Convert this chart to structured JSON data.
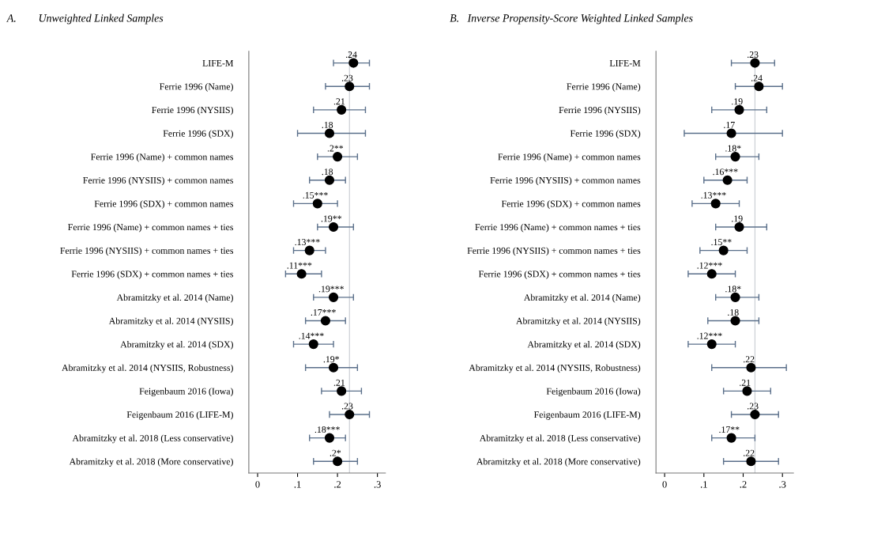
{
  "chart_data": [
    {
      "type": "scatter",
      "orientation": "horizontal",
      "title": "A.        Unweighted Linked Samples",
      "categories": [
        "LIFE-M",
        "Ferrie 1996 (Name)",
        "Ferrie 1996 (NYSIIS)",
        "Ferrie 1996 (SDX)",
        "Ferrie 1996 (Name) + common names",
        "Ferrie 1996 (NYSIIS) + common names",
        "Ferrie 1996 (SDX) + common names",
        "Ferrie 1996 (Name) + common names + ties",
        "Ferrie 1996 (NYSIIS) + common names + ties",
        "Ferrie 1996 (SDX) + common names + ties",
        "Abramitzky et al. 2014 (Name)",
        "Abramitzky et al. 2014 (NYSIIS)",
        "Abramitzky et al. 2014 (SDX)",
        "Abramitzky et al. 2014 (NYSIIS, Robustness)",
        "Feigenbaum 2016 (Iowa)",
        "Feigenbaum 2016 (LIFE-M)",
        "Abramitzky et al. 2018 (Less conservative)",
        "Abramitzky et al. 2018 (More conservative)"
      ],
      "values": [
        0.24,
        0.23,
        0.21,
        0.18,
        0.2,
        0.18,
        0.15,
        0.19,
        0.13,
        0.11,
        0.19,
        0.17,
        0.14,
        0.19,
        0.21,
        0.23,
        0.18,
        0.2
      ],
      "value_labels": [
        ".24",
        ".23",
        ".21",
        ".18",
        ".2**",
        ".18",
        ".15***",
        ".19**",
        ".13***",
        ".11***",
        ".19***",
        ".17***",
        ".14***",
        ".19*",
        ".21",
        ".23",
        ".18***",
        ".2*"
      ],
      "errors": [
        [
          0.19,
          0.28
        ],
        [
          0.17,
          0.28
        ],
        [
          0.14,
          0.27
        ],
        [
          0.1,
          0.27
        ],
        [
          0.15,
          0.25
        ],
        [
          0.13,
          0.22
        ],
        [
          0.09,
          0.2
        ],
        [
          0.15,
          0.24
        ],
        [
          0.09,
          0.17
        ],
        [
          0.07,
          0.16
        ],
        [
          0.14,
          0.24
        ],
        [
          0.12,
          0.22
        ],
        [
          0.09,
          0.19
        ],
        [
          0.12,
          0.25
        ],
        [
          0.16,
          0.26
        ],
        [
          0.18,
          0.28
        ],
        [
          0.13,
          0.22
        ],
        [
          0.14,
          0.25
        ]
      ],
      "color": "#000000",
      "marker": "circle",
      "xlim": [
        -0.022,
        0.32
      ],
      "xticks": [
        0,
        {
          "value": 0.1,
          "label": ".1"
        },
        {
          "value": 0.2,
          "label": ".2"
        },
        {
          "value": 0.3,
          "label": ".3"
        }
      ],
      "ref_lines": [
        {
          "axis": "x",
          "value": 0.23,
          "color": "#c8ccd2"
        }
      ],
      "grid": false
    },
    {
      "type": "scatter",
      "orientation": "horizontal",
      "title": "B.   Inverse Propensity-Score Weighted Linked Samples",
      "categories": [
        "LIFE-M",
        "Ferrie 1996 (Name)",
        "Ferrie 1996 (NYSIIS)",
        "Ferrie 1996 (SDX)",
        "Ferrie 1996 (Name) + common names",
        "Ferrie 1996 (NYSIIS) + common names",
        "Ferrie 1996 (SDX) + common names",
        "Ferrie 1996 (Name) + common names + ties",
        "Ferrie 1996 (NYSIIS) + common names + ties",
        "Ferrie 1996 (SDX) + common names + ties",
        "Abramitzky et al. 2014 (Name)",
        "Abramitzky et al. 2014 (NYSIIS)",
        "Abramitzky et al. 2014 (SDX)",
        "Abramitzky et al. 2014 (NYSIIS, Robustness)",
        "Feigenbaum 2016 (Iowa)",
        "Feigenbaum 2016 (LIFE-M)",
        "Abramitzky et al. 2018 (Less conservative)",
        "Abramitzky et al. 2018 (More conservative)"
      ],
      "values": [
        0.23,
        0.24,
        0.19,
        0.17,
        0.18,
        0.16,
        0.13,
        0.19,
        0.15,
        0.12,
        0.18,
        0.18,
        0.12,
        0.22,
        0.21,
        0.23,
        0.17,
        0.22
      ],
      "value_labels": [
        ".23",
        ".24",
        ".19",
        ".17",
        ".18*",
        ".16***",
        ".13***",
        ".19",
        ".15**",
        ".12***",
        ".18*",
        ".18",
        ".12***",
        ".22",
        ".21",
        ".23",
        ".17**",
        ".22"
      ],
      "errors": [
        [
          0.17,
          0.28
        ],
        [
          0.18,
          0.3
        ],
        [
          0.12,
          0.26
        ],
        [
          0.05,
          0.3
        ],
        [
          0.13,
          0.24
        ],
        [
          0.1,
          0.21
        ],
        [
          0.07,
          0.19
        ],
        [
          0.13,
          0.26
        ],
        [
          0.09,
          0.21
        ],
        [
          0.06,
          0.18
        ],
        [
          0.13,
          0.24
        ],
        [
          0.11,
          0.24
        ],
        [
          0.06,
          0.18
        ],
        [
          0.12,
          0.31
        ],
        [
          0.15,
          0.27
        ],
        [
          0.17,
          0.29
        ],
        [
          0.12,
          0.23
        ],
        [
          0.15,
          0.29
        ]
      ],
      "color": "#000000",
      "marker": "circle",
      "xlim": [
        -0.022,
        0.328
      ],
      "xticks": [
        0,
        {
          "value": 0.1,
          "label": ".1"
        },
        {
          "value": 0.2,
          "label": ".2"
        },
        {
          "value": 0.3,
          "label": ".3"
        }
      ],
      "ref_lines": [
        {
          "axis": "x",
          "value": 0.23,
          "color": "#c8ccd2"
        }
      ],
      "grid": false
    }
  ]
}
